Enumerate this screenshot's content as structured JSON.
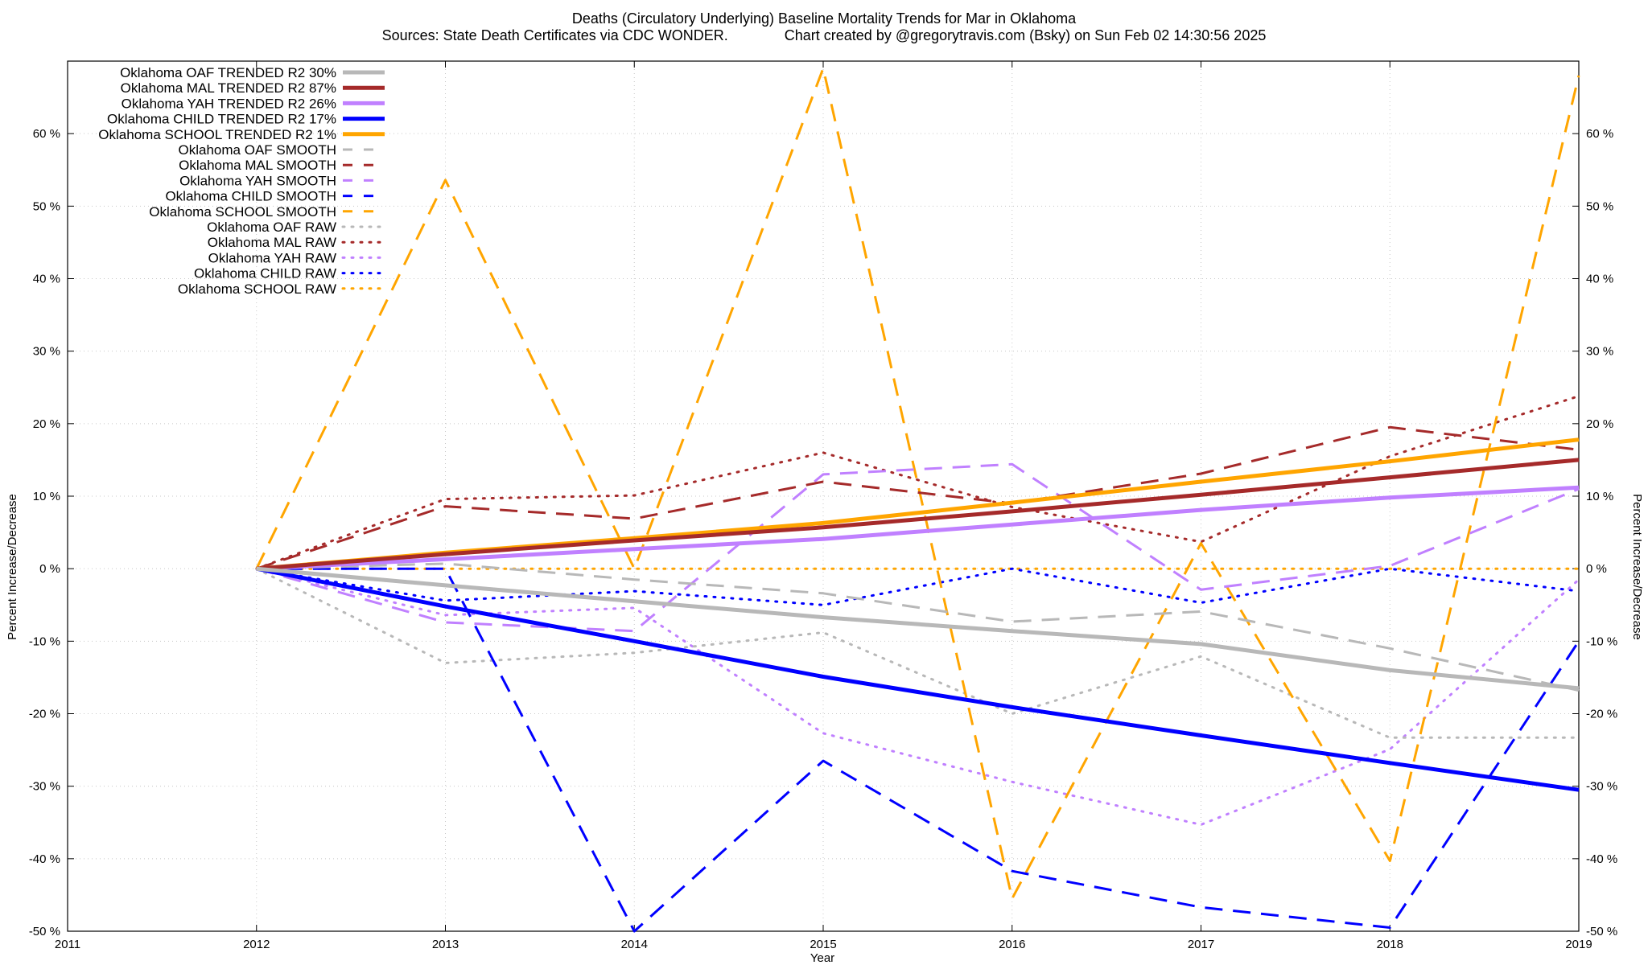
{
  "chart_data": {
    "type": "line",
    "title": "Deaths (Circulatory Underlying)  Baseline Mortality Trends for Mar in Oklahoma",
    "subtitle": "Sources: State Death Certificates via CDC WONDER.              Chart created by @gregorytravis.com (Bsky) on Sun Feb 02 14:30:56 2025",
    "xlabel": "Year",
    "ylabel": "Percent Increase/Decrease",
    "y2label": "Percent Increase/Decrease",
    "xlim": [
      2011,
      2019
    ],
    "ylim": [
      -50,
      70
    ],
    "x_ticks": [
      "2011",
      "2012",
      "2013",
      "2014",
      "2015",
      "2016",
      "2017",
      "2018",
      "2019"
    ],
    "y_ticks": [
      "-50 %",
      "-40 %",
      "-30 %",
      "-20 %",
      "-10 %",
      "0 %",
      "10 %",
      "20 %",
      "30 %",
      "40 %",
      "50 %",
      "60 %"
    ],
    "grid": true,
    "legend_position": "top-left",
    "x": [
      2012,
      2013,
      2014,
      2015,
      2016,
      2017,
      2018,
      2019
    ],
    "series": [
      {
        "name": "Oklahoma OAF TRENDED R2  30%",
        "style": "solid",
        "color": "#b8b8b8",
        "values": [
          0,
          -2.3,
          -4.5,
          -6.7,
          -8.6,
          -10.4,
          -14,
          -16.5
        ]
      },
      {
        "name": "Oklahoma MAL TRENDED R2  87%",
        "style": "solid",
        "color": "#a52a2a",
        "values": [
          0,
          2,
          3.9,
          5.7,
          7.9,
          10.2,
          12.6,
          15
        ]
      },
      {
        "name": "Oklahoma YAH TRENDED R2  26%",
        "style": "solid",
        "color": "#c080ff",
        "values": [
          0,
          1.3,
          2.7,
          4.1,
          6.1,
          8.1,
          9.8,
          11.2
        ]
      },
      {
        "name": "Oklahoma CHILD TRENDED R2  17%",
        "style": "solid",
        "color": "#0000ff",
        "values": [
          0,
          -5.2,
          -10,
          -14.9,
          -19.1,
          -23,
          -26.8,
          -30.5
        ]
      },
      {
        "name": "Oklahoma SCHOOL TRENDED R2   1%",
        "style": "solid",
        "color": "#ffa500",
        "values": [
          0,
          2.2,
          4.2,
          6.3,
          9.1,
          12,
          14.8,
          17.8
        ]
      },
      {
        "name": "Oklahoma OAF SMOOTH",
        "style": "dashed",
        "color": "#b8b8b8",
        "values": [
          0,
          0.7,
          -1.5,
          -3.4,
          -7.3,
          -5.9,
          -11,
          -16.8
        ]
      },
      {
        "name": "Oklahoma MAL SMOOTH",
        "style": "dashed",
        "color": "#a52a2a",
        "values": [
          0,
          8.6,
          6.9,
          12,
          9,
          13.1,
          19.5,
          16.4
        ]
      },
      {
        "name": "Oklahoma YAH SMOOTH",
        "style": "dashed",
        "color": "#c080ff",
        "values": [
          0,
          -7.4,
          -8.6,
          13,
          14.4,
          -2.9,
          0.4,
          11
        ]
      },
      {
        "name": "Oklahoma CHILD SMOOTH",
        "style": "dashed",
        "color": "#0000ff",
        "values": [
          0,
          0,
          -50,
          -26.5,
          -41.7,
          -46.7,
          -49.5,
          -10
        ]
      },
      {
        "name": "Oklahoma SCHOOL SMOOTH",
        "style": "dashed",
        "color": "#ffa500",
        "values": [
          0,
          53.6,
          0,
          69,
          -45.5,
          3.5,
          -40.3,
          68
        ]
      },
      {
        "name": "Oklahoma OAF RAW",
        "style": "dotted",
        "color": "#b8b8b8",
        "values": [
          0,
          -13,
          -11.6,
          -8.8,
          -20,
          -12.1,
          -23.3,
          -23.3
        ]
      },
      {
        "name": "Oklahoma MAL RAW",
        "style": "dotted",
        "color": "#a52a2a",
        "values": [
          0,
          9.6,
          10.1,
          16,
          8.5,
          3.7,
          15.5,
          23.8
        ]
      },
      {
        "name": "Oklahoma YAH RAW",
        "style": "dotted",
        "color": "#c080ff",
        "values": [
          0,
          -6.4,
          -5.4,
          -22.7,
          -29.4,
          -35.3,
          -24.9,
          -1.5
        ]
      },
      {
        "name": "Oklahoma CHILD RAW",
        "style": "dotted",
        "color": "#0000ff",
        "values": [
          0,
          -4.4,
          -3.1,
          -5,
          0,
          -4.7,
          0,
          -3.1
        ]
      },
      {
        "name": "Oklahoma SCHOOL RAW",
        "style": "dotted",
        "color": "#ffa500",
        "values": [
          0,
          0,
          0,
          0,
          0,
          0,
          0,
          0
        ]
      }
    ]
  }
}
